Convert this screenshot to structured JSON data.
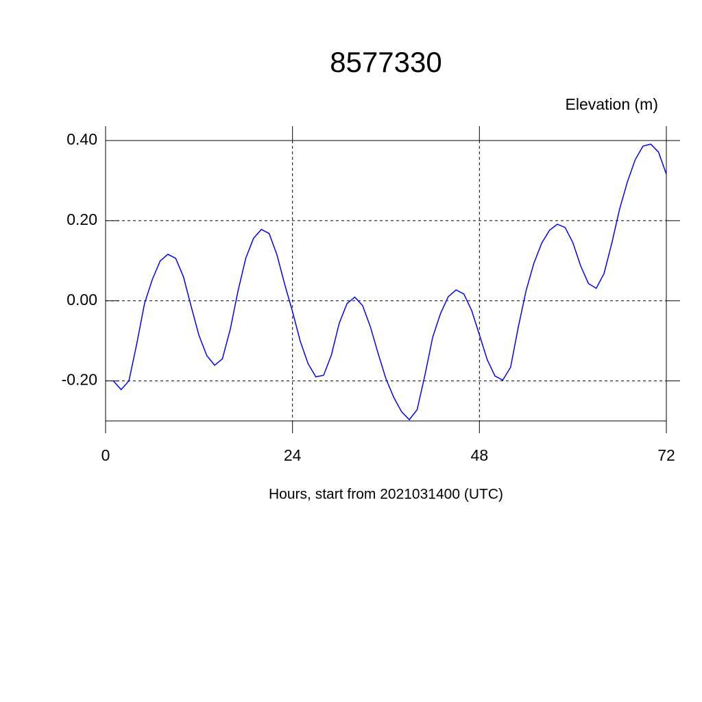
{
  "chart_data": {
    "type": "line",
    "title": "8577330",
    "y_label": "Elevation (m)",
    "x_label": "Hours, start from 2021031400 (UTC)",
    "x": [
      1,
      2,
      3,
      4,
      5,
      6,
      7,
      8,
      9,
      10,
      11,
      12,
      13,
      14,
      15,
      16,
      17,
      18,
      19,
      20,
      21,
      22,
      23,
      24,
      25,
      26,
      27,
      28,
      29,
      30,
      31,
      32,
      33,
      34,
      35,
      36,
      37,
      38,
      39,
      40,
      41,
      42,
      43,
      44,
      45,
      46,
      47,
      48,
      49,
      50,
      51,
      52,
      53,
      54,
      55,
      56,
      57,
      58,
      59,
      60,
      61,
      62,
      63,
      64,
      65,
      66,
      67,
      68,
      69,
      70,
      71,
      72
    ],
    "values": [
      -0.2,
      -0.222,
      -0.2,
      -0.108,
      -0.007,
      0.053,
      0.099,
      0.116,
      0.106,
      0.06,
      -0.015,
      -0.087,
      -0.137,
      -0.161,
      -0.145,
      -0.072,
      0.024,
      0.106,
      0.156,
      0.178,
      0.168,
      0.115,
      0.041,
      -0.027,
      -0.101,
      -0.157,
      -0.19,
      -0.186,
      -0.135,
      -0.056,
      -0.007,
      0.009,
      -0.012,
      -0.065,
      -0.132,
      -0.195,
      -0.241,
      -0.277,
      -0.297,
      -0.272,
      -0.186,
      -0.091,
      -0.032,
      0.01,
      0.027,
      0.017,
      -0.024,
      -0.085,
      -0.147,
      -0.188,
      -0.198,
      -0.166,
      -0.065,
      0.026,
      0.094,
      0.144,
      0.176,
      0.191,
      0.183,
      0.145,
      0.087,
      0.043,
      0.031,
      0.068,
      0.144,
      0.229,
      0.297,
      0.352,
      0.386,
      0.391,
      0.371,
      0.316
    ],
    "color": "#0000ff",
    "xlim": [
      0,
      72
    ],
    "xticks": [
      0,
      24,
      48,
      72
    ],
    "ylim": [
      -0.3,
      0.4
    ],
    "yticks": [
      {
        "value": 0.4,
        "label": "0.40"
      },
      {
        "value": 0.2,
        "label": "0.20"
      },
      {
        "value": 0,
        "label": "0.00"
      },
      {
        "value": -0.2,
        "label": "-0.20"
      }
    ],
    "grid": true
  }
}
